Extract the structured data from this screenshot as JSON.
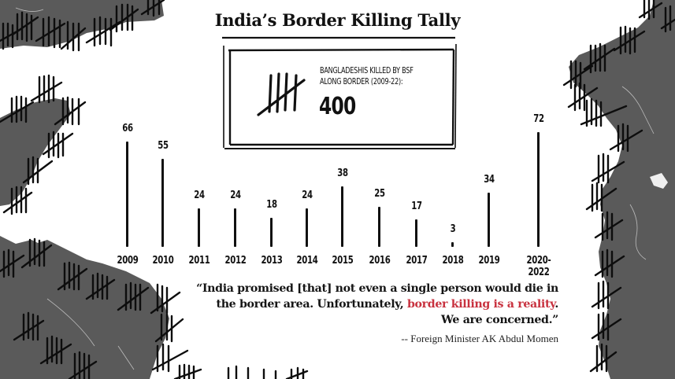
{
  "header": {
    "title": "India’s Border Killing Tally"
  },
  "summary_box": {
    "icon": "tally-marks-icon",
    "label_line1": "BANGLADESHIS KILLED BY BSF",
    "label_line2": "ALONG BORDER (2009-22):",
    "total": "400"
  },
  "colors": {
    "background": "#ffffff",
    "ink": "#111111",
    "map_gray": "#5a5a5a",
    "highlight_red": "#c8323f"
  },
  "quote": {
    "part1": "“India promised [that] not even a single person would die in the border area. Unfortunately, ",
    "highlight": "border killing is a reality",
    "part2": ". We are concerned.”",
    "attribution": "-- Foreign Minister AK Abdul Momen"
  },
  "chart_data": {
    "type": "bar",
    "title": "India’s Border Killing Tally",
    "subtitle": "Bangladeshis killed by BSF along border (2009-22): 400",
    "categories": [
      "2009",
      "2010",
      "2011",
      "2012",
      "2013",
      "2014",
      "2015",
      "2016",
      "2017",
      "2018",
      "2019",
      "2020-2022"
    ],
    "values": [
      66,
      55,
      24,
      24,
      18,
      24,
      38,
      25,
      17,
      3,
      34,
      72
    ],
    "labels": [
      "66",
      "55",
      "24",
      "24",
      "18",
      "24",
      "38",
      "25",
      "17",
      "3",
      "34",
      "72"
    ],
    "xlabel": "",
    "ylabel": "",
    "grid": false,
    "legend": null,
    "style": "vertical line stems with value labels on top"
  }
}
